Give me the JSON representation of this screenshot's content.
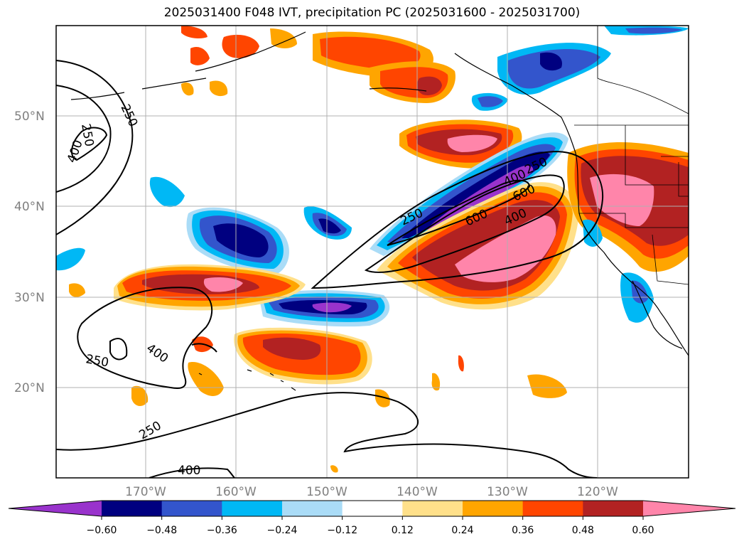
{
  "title": "2025031400 F048 IVT, precipitation PC (2025031600 - 2025031700)",
  "latitude_labels": [
    "50°N",
    "40°N",
    "30°N",
    "20°N"
  ],
  "longitude_labels": [
    "170°W",
    "160°W",
    "150°W",
    "140°W",
    "130°W",
    "120°W"
  ],
  "contour_labels": [
    "250",
    "250",
    "400",
    "250",
    "400",
    "250",
    "400",
    "250",
    "600",
    "400",
    "600",
    "400",
    "250"
  ],
  "colorbar": {
    "ticks": [
      "−0.60",
      "−0.48",
      "−0.36",
      "−0.24",
      "−0.12",
      "0.12",
      "0.24",
      "0.36",
      "0.48",
      "0.60"
    ],
    "colors": [
      "#9933cc",
      "#000080",
      "#3355cc",
      "#00b8f5",
      "#aadcf7",
      "#ffffff",
      "#ffe08a",
      "#ffa500",
      "#ff4500",
      "#b22222",
      "#ff85aa"
    ]
  },
  "colors": {
    "grid": "#b0b0b0",
    "coast": "#000000",
    "contour": "#000000"
  }
}
